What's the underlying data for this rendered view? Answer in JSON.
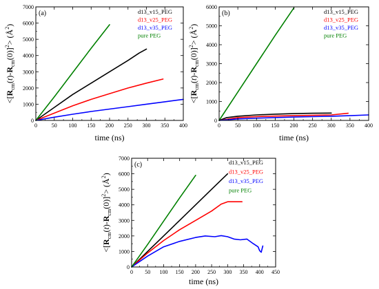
{
  "charts": [
    {
      "type": "line",
      "panel_label": "(a)",
      "xlabel": "time (ns)",
      "ylabel": "<[R_cm(t)-R_cm(0)]^2> (Å^2)",
      "xlim": [
        0,
        400
      ],
      "ylim": [
        0,
        7000
      ],
      "xticks": [
        0,
        50,
        100,
        150,
        200,
        250,
        300,
        350,
        400
      ],
      "yticks": [
        0,
        1000,
        2000,
        3000,
        4000,
        5000,
        6000,
        7000
      ],
      "grid": false,
      "legend_position": "top-right",
      "series": [
        {
          "name": "d13_v15_PEG",
          "color": "#000000",
          "x": [
            0,
            50,
            100,
            150,
            200,
            250,
            280,
            300
          ],
          "y": [
            0,
            800,
            1600,
            2300,
            3000,
            3700,
            4150,
            4400
          ]
        },
        {
          "name": "d13_v25_PEG",
          "color": "#ff0000",
          "x": [
            0,
            50,
            100,
            150,
            200,
            250,
            300,
            345
          ],
          "y": [
            0,
            450,
            900,
            1300,
            1650,
            2000,
            2300,
            2550
          ]
        },
        {
          "name": "d13_v35_PEG",
          "color": "#0000ff",
          "x": [
            0,
            50,
            100,
            150,
            200,
            250,
            300,
            350,
            400
          ],
          "y": [
            0,
            200,
            380,
            550,
            700,
            850,
            1000,
            1150,
            1300
          ]
        },
        {
          "name": "pure PEG",
          "color": "#008000",
          "x": [
            0,
            50,
            100,
            150,
            200
          ],
          "y": [
            0,
            1450,
            2950,
            4450,
            5900
          ]
        }
      ]
    },
    {
      "type": "line",
      "panel_label": "(b)",
      "xlabel": "time (ns)",
      "ylabel": "<[R_cm(t)-R_cm(0)]^2> (Å^2)",
      "xlim": [
        0,
        400
      ],
      "ylim": [
        0,
        6000
      ],
      "xticks": [
        0,
        50,
        100,
        150,
        200,
        250,
        300,
        350,
        400
      ],
      "yticks": [
        0,
        1000,
        2000,
        3000,
        4000,
        5000,
        6000
      ],
      "grid": false,
      "legend_position": "top-right",
      "series": [
        {
          "name": "d13_v15_PEG",
          "color": "#000000",
          "x": [
            0,
            20,
            50,
            100,
            150,
            200,
            250,
            300
          ],
          "y": [
            0,
            150,
            220,
            290,
            330,
            360,
            380,
            390
          ]
        },
        {
          "name": "d13_v25_PEG",
          "color": "#ff0000",
          "x": [
            0,
            50,
            100,
            150,
            200,
            250,
            300,
            345
          ],
          "y": [
            0,
            150,
            200,
            230,
            250,
            270,
            290,
            380
          ]
        },
        {
          "name": "d13_v35_PEG",
          "color": "#0000ff",
          "x": [
            0,
            50,
            100,
            150,
            200,
            250,
            300,
            350,
            400
          ],
          "y": [
            0,
            80,
            120,
            150,
            180,
            200,
            220,
            250,
            290
          ]
        },
        {
          "name": "pure PEG",
          "color": "#008000",
          "x": [
            0,
            50,
            100,
            150,
            200
          ],
          "y": [
            0,
            1500,
            3000,
            4500,
            5950
          ]
        }
      ]
    },
    {
      "type": "line",
      "panel_label": "(c)",
      "xlabel": "time (ns)",
      "ylabel": "<[R_cm(t)-R_cm(0)]^2> (Å^2)",
      "xlim": [
        0,
        450
      ],
      "ylim": [
        0,
        7000
      ],
      "xticks": [
        0,
        50,
        100,
        150,
        200,
        250,
        300,
        350,
        400,
        450
      ],
      "yticks": [
        0,
        1000,
        2000,
        3000,
        4000,
        5000,
        6000,
        7000
      ],
      "grid": false,
      "legend_position": "top-right",
      "series": [
        {
          "name": "d13_v15_PEG",
          "color": "#000000",
          "x": [
            0,
            50,
            100,
            150,
            200,
            250,
            280,
            300
          ],
          "y": [
            0,
            1000,
            2000,
            3000,
            4000,
            5000,
            5600,
            6000
          ]
        },
        {
          "name": "d13_v25_PEG",
          "color": "#ff0000",
          "x": [
            0,
            50,
            100,
            150,
            200,
            250,
            280,
            300,
            320,
            345
          ],
          "y": [
            0,
            900,
            1700,
            2400,
            3000,
            3600,
            4050,
            4200,
            4200,
            4200
          ]
        },
        {
          "name": "d13_v35_PEG",
          "color": "#0000ff",
          "x": [
            0,
            50,
            100,
            150,
            200,
            230,
            260,
            280,
            300,
            320,
            340,
            360,
            380,
            395,
            400,
            405,
            408,
            410
          ],
          "y": [
            0,
            700,
            1300,
            1650,
            1900,
            2000,
            1950,
            2020,
            1950,
            1800,
            1750,
            1800,
            1500,
            1300,
            1050,
            950,
            1200,
            1350
          ]
        },
        {
          "name": "pure PEG",
          "color": "#008000",
          "x": [
            0,
            50,
            100,
            150,
            200
          ],
          "y": [
            0,
            1450,
            2950,
            4450,
            5900
          ]
        }
      ]
    }
  ]
}
